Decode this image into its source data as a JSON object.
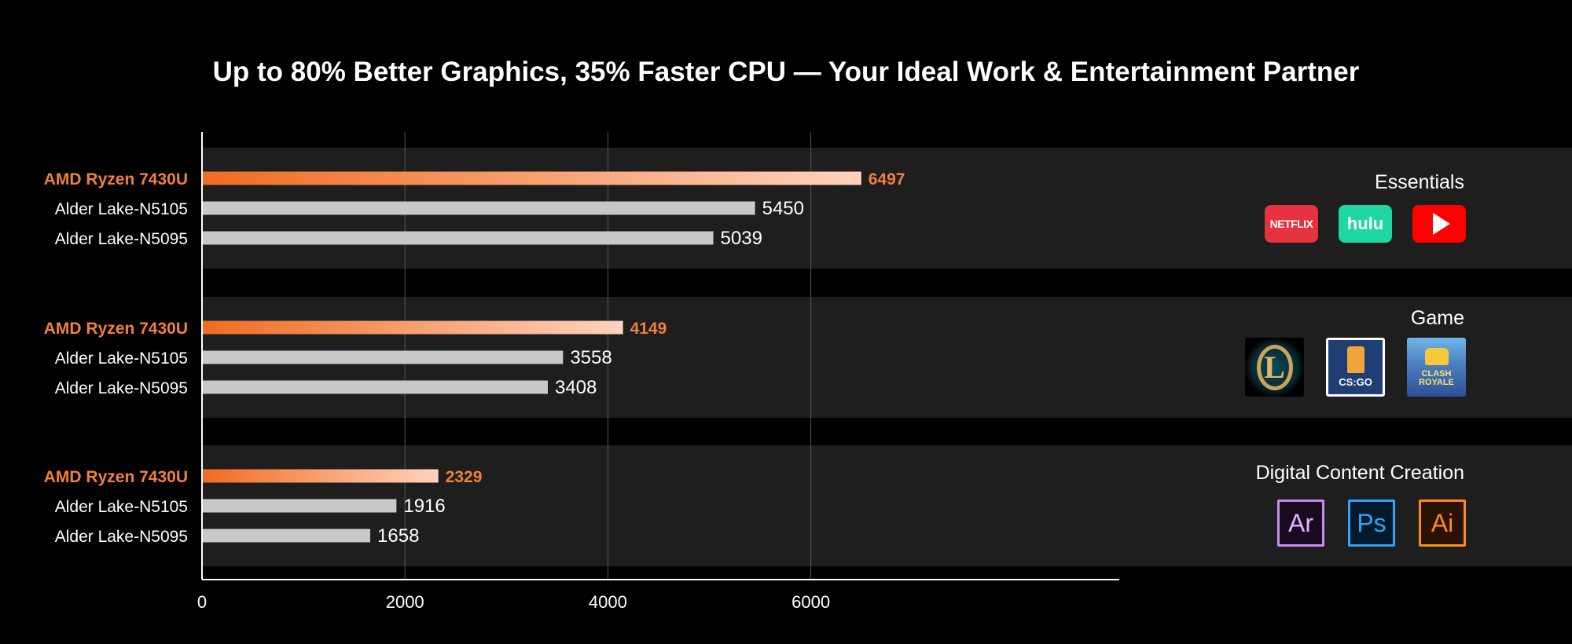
{
  "title": "Up to 80% Better Graphics, 35% Faster CPU — Your Ideal Work & Entertainment Partner",
  "colors": {
    "background": "#000000",
    "panel": "#1e1e1e",
    "highlight_start": "#f06c22",
    "highlight_end": "#ffd3bd",
    "highlight_label": "#f08040",
    "baseline_bar": "#c8c8c8",
    "text": "#ffffff",
    "gridline": "#555555"
  },
  "groups": [
    {
      "title": "Essentials",
      "icons": [
        {
          "name": "netflix-icon",
          "label": "NETFLIX"
        },
        {
          "name": "hulu-icon",
          "label": "hulu"
        },
        {
          "name": "youtube-icon",
          "label": ""
        }
      ]
    },
    {
      "title": "Game",
      "icons": [
        {
          "name": "league-of-legends-icon",
          "label": "L"
        },
        {
          "name": "csgo-icon",
          "label": "CS:GO"
        },
        {
          "name": "clash-royale-icon",
          "label": "CLASH ROYALE"
        }
      ]
    },
    {
      "title": "Digital Content Creation",
      "icons": [
        {
          "name": "adobe-aero-icon",
          "label": "Ar"
        },
        {
          "name": "adobe-photoshop-icon",
          "label": "Ps"
        },
        {
          "name": "adobe-illustrator-icon",
          "label": "Ai"
        }
      ]
    }
  ],
  "chart_data": {
    "type": "bar",
    "orientation": "horizontal",
    "title": "Up to 80% Better Graphics, 35% Faster CPU — Your Ideal Work & Entertainment Partner",
    "xlim": [
      0,
      7100
    ],
    "xticks": [
      0,
      2000,
      4000,
      6000
    ],
    "grid": true,
    "groups": [
      {
        "name": "Essentials",
        "bars": [
          {
            "label": "AMD Ryzen 7430U",
            "value": 6497,
            "highlight": true
          },
          {
            "label": "Alder Lake-N5105",
            "value": 5450,
            "highlight": false
          },
          {
            "label": "Alder Lake-N5095",
            "value": 5039,
            "highlight": false
          }
        ]
      },
      {
        "name": "Game",
        "bars": [
          {
            "label": "AMD Ryzen 7430U",
            "value": 4149,
            "highlight": true
          },
          {
            "label": "Alder Lake-N5105",
            "value": 3558,
            "highlight": false
          },
          {
            "label": "Alder Lake-N5095",
            "value": 3408,
            "highlight": false
          }
        ]
      },
      {
        "name": "Digital Content Creation",
        "bars": [
          {
            "label": "AMD Ryzen 7430U",
            "value": 2329,
            "highlight": true
          },
          {
            "label": "Alder Lake-N5105",
            "value": 1916,
            "highlight": false
          },
          {
            "label": "Alder Lake-N5095",
            "value": 1658,
            "highlight": false
          }
        ]
      }
    ]
  }
}
